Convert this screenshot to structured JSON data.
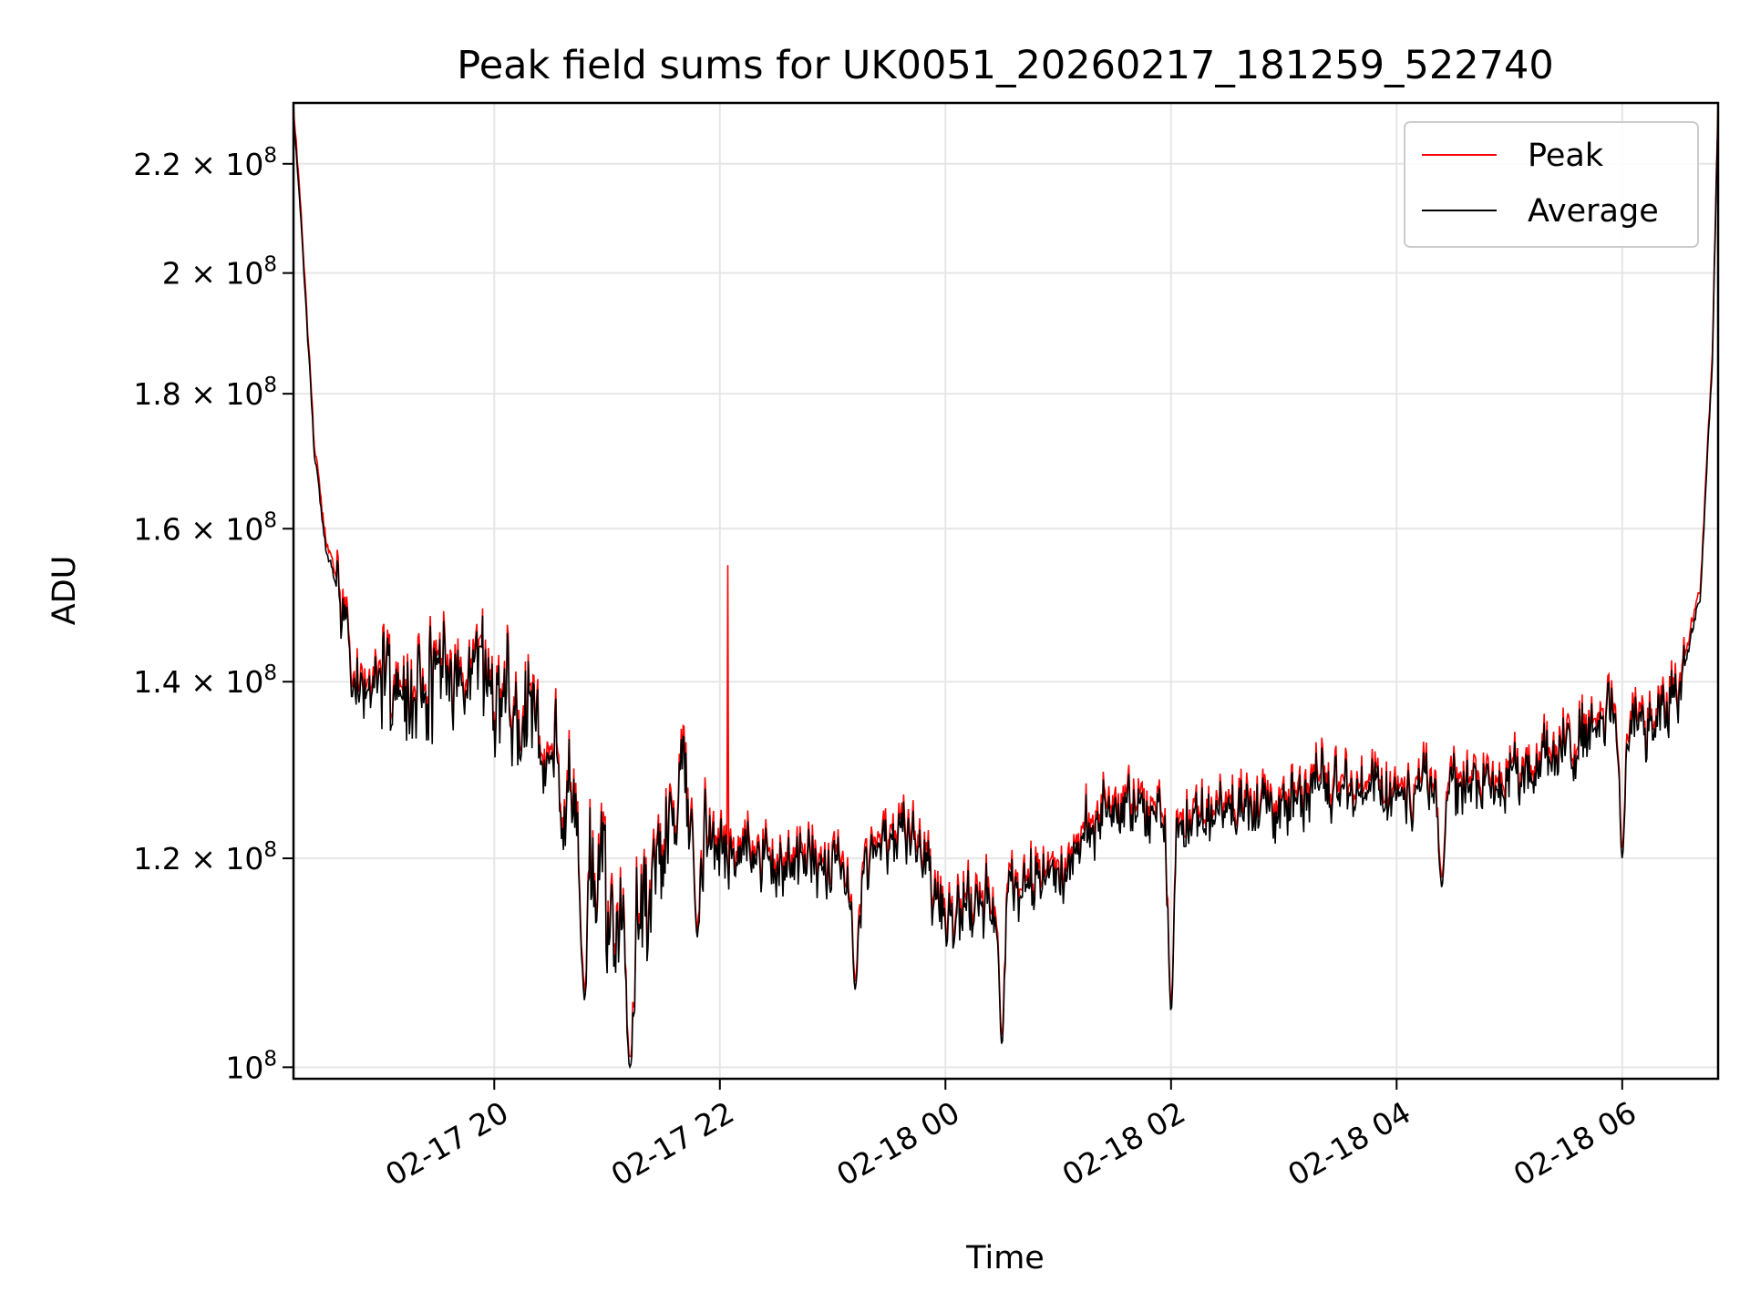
{
  "chart_data": {
    "type": "line",
    "title": "Peak field sums for UK0051_20260217_181259_522740",
    "xlabel": "Time",
    "ylabel": "ADU",
    "yscale": "log",
    "xlim_hours": [
      18.22,
      30.85
    ],
    "ylim": [
      99000000,
      232000000
    ],
    "grid": true,
    "legend_position": "upper right",
    "x_ticks": [
      {
        "hour": 20,
        "label": "02-17 20"
      },
      {
        "hour": 22,
        "label": "02-17 22"
      },
      {
        "hour": 24,
        "label": "02-18 00"
      },
      {
        "hour": 26,
        "label": "02-18 02"
      },
      {
        "hour": 28,
        "label": "02-18 04"
      },
      {
        "hour": 30,
        "label": "02-18 06"
      }
    ],
    "y_ticks": [
      {
        "value": 100000000,
        "mantissa": "",
        "exp": "8"
      },
      {
        "value": 120000000,
        "mantissa": "1.2",
        "exp": "8"
      },
      {
        "value": 140000000,
        "mantissa": "1.4",
        "exp": "8"
      },
      {
        "value": 160000000,
        "mantissa": "1.6",
        "exp": "8"
      },
      {
        "value": 180000000,
        "mantissa": "1.8",
        "exp": "8"
      },
      {
        "value": 200000000,
        "mantissa": "2",
        "exp": "8"
      },
      {
        "value": 220000000,
        "mantissa": "2.2",
        "exp": "8"
      }
    ],
    "tick_label_base": "10",
    "tick_label_times": "×",
    "series": [
      {
        "name": "Peak",
        "color": "#ff0000"
      },
      {
        "name": "Average",
        "color": "#000000"
      }
    ],
    "anchors_hours": [
      18.22,
      18.3,
      18.4,
      18.5,
      18.6,
      18.75,
      19.0,
      19.3,
      19.6,
      19.9,
      20.2,
      20.4,
      20.6,
      20.8,
      21.0,
      21.1,
      21.2,
      21.4,
      21.6,
      21.8,
      22.0,
      22.5,
      23.0,
      23.3,
      23.6,
      23.8,
      24.0,
      24.3,
      24.6,
      25.0,
      25.3,
      25.6,
      25.8,
      26.0,
      26.2,
      26.5,
      27.0,
      27.5,
      28.0,
      28.5,
      29.0,
      29.4,
      29.8,
      30.0,
      30.2,
      30.5,
      30.7,
      30.8,
      30.85
    ],
    "anchors_values_M": [
      230,
      205,
      172,
      158,
      152,
      140,
      140,
      139,
      142,
      140,
      139,
      135,
      127,
      122,
      115,
      112,
      109,
      118,
      125,
      124,
      121,
      120,
      119,
      118,
      124,
      119,
      115,
      116,
      117,
      118,
      124,
      126,
      125,
      123,
      124,
      125,
      126,
      128,
      127,
      128,
      129,
      131,
      135,
      136,
      134,
      138,
      152,
      185,
      230
    ],
    "noise_amplitude_M": 5,
    "dip_events": [
      {
        "hour": 20.8,
        "value_M": 106
      },
      {
        "hour": 21.2,
        "value_M": 100
      },
      {
        "hour": 21.8,
        "value_M": 112
      },
      {
        "hour": 23.2,
        "value_M": 107
      },
      {
        "hour": 24.5,
        "value_M": 102
      },
      {
        "hour": 26.0,
        "value_M": 105
      },
      {
        "hour": 28.4,
        "value_M": 117
      },
      {
        "hour": 30.0,
        "value_M": 120
      }
    ],
    "peak_spikes": [
      {
        "hour": 22.07,
        "value_M": 155
      }
    ]
  }
}
